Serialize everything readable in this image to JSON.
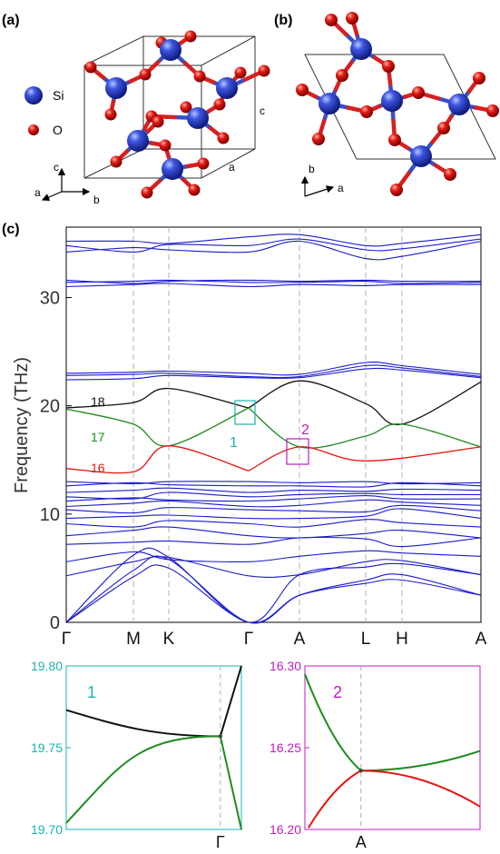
{
  "panels": {
    "a": "(a)",
    "b": "(b)",
    "c": "(c)"
  },
  "legend": {
    "si": "Si",
    "o": "O"
  },
  "axes_a": {
    "c": "c",
    "a": "a",
    "b": "b",
    "cell_c": "c",
    "cell_a": "a"
  },
  "axes_b": {
    "b": "b",
    "a": "a"
  },
  "colors": {
    "si": "#2233bb",
    "o": "#dd1111",
    "bond_si": "#3a4fc4",
    "bond_o": "#d62020",
    "band": "#1a1acc",
    "band16": "#e8140c",
    "band17": "#1f8a1f",
    "band18": "#111111",
    "box1": "#18b4b4",
    "box2": "#c21cc2",
    "dash": "#b0b0b0"
  },
  "chart_data": [
    {
      "type": "line",
      "title": "",
      "xlabel": "",
      "ylabel": "Frequency (THz)",
      "ylim": [
        0,
        36.5
      ],
      "yticks": [
        "0",
        "10",
        "20",
        "30"
      ],
      "xticks": [
        "Γ",
        "M",
        "K",
        "Γ",
        "A",
        "L",
        "H",
        "A"
      ],
      "band_labels": [
        "16",
        "17",
        "18"
      ],
      "inset_labels": [
        "1",
        "2"
      ],
      "series": [
        {
          "name": "18",
          "color": "black",
          "points": [
            [
              0,
              19.8
            ],
            [
              1,
              20.3
            ],
            [
              1.5,
              21.6
            ],
            [
              2,
              19.8
            ],
            [
              2.8,
              22.3
            ],
            [
              3.3,
              20.2
            ],
            [
              3.9,
              18.3
            ],
            [
              4.6,
              22.2
            ]
          ]
        },
        {
          "name": "17",
          "color": "green",
          "points": [
            [
              0,
              19.7
            ],
            [
              1,
              18.3
            ],
            [
              1.5,
              16.3
            ],
            [
              2,
              19.8
            ],
            [
              2.8,
              16.2
            ],
            [
              3.3,
              17.2
            ],
            [
              3.9,
              18.3
            ],
            [
              4.6,
              16.2
            ]
          ]
        },
        {
          "name": "16",
          "color": "red",
          "points": [
            [
              0,
              14.2
            ],
            [
              1,
              13.9
            ],
            [
              1.5,
              16.3
            ],
            [
              2,
              14.0
            ],
            [
              2.8,
              16.2
            ],
            [
              3.3,
              14.9
            ],
            [
              4.6,
              16.2
            ]
          ]
        }
      ]
    },
    {
      "type": "line",
      "label": "1",
      "ylim": [
        19.7,
        19.8
      ],
      "yticks": [
        "19.70",
        "19.75",
        "19.80"
      ],
      "xticks": [
        "Γ"
      ],
      "series": [
        {
          "color": "black",
          "points": [
            [
              0,
              19.773
            ],
            [
              0.5,
              19.762
            ],
            [
              0.88,
              19.757
            ],
            [
              1.0,
              19.8
            ]
          ]
        },
        {
          "color": "green",
          "points": [
            [
              0,
              19.704
            ],
            [
              0.4,
              19.738
            ],
            [
              0.88,
              19.757
            ],
            [
              1.0,
              19.7
            ]
          ]
        }
      ]
    },
    {
      "type": "line",
      "label": "2",
      "ylim": [
        16.2,
        16.3
      ],
      "yticks": [
        "16.20",
        "16.25",
        "16.30"
      ],
      "xticks": [
        "A"
      ],
      "series": [
        {
          "color": "green",
          "points": [
            [
              0,
              16.295
            ],
            [
              0.32,
              16.236
            ],
            [
              1.0,
              16.248
            ]
          ]
        },
        {
          "color": "red",
          "points": [
            [
              0.02,
              16.201
            ],
            [
              0.32,
              16.236
            ],
            [
              1.0,
              16.214
            ]
          ]
        }
      ]
    }
  ]
}
